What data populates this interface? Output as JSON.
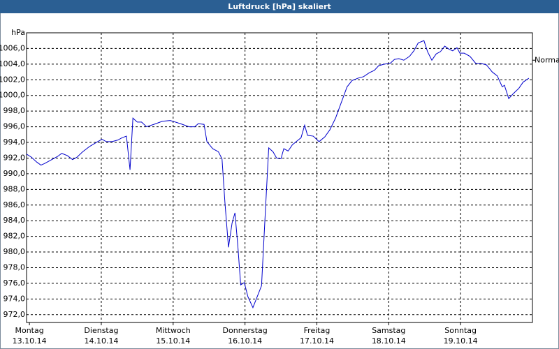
{
  "chart_data": {
    "type": "line",
    "title": "Luftdruck [hPa] skaliert",
    "y_label": "hPa",
    "annotation": {
      "label": "Normal",
      "value": 1004.5
    },
    "grid": true,
    "xlim": [
      -0.04,
      7.0
    ],
    "ylim": [
      971,
      1008
    ],
    "xticks": [
      {
        "value": 0,
        "label": [
          "Montag",
          "13.10.14"
        ]
      },
      {
        "value": 1,
        "label": [
          "Dienstag",
          "14.10.14"
        ]
      },
      {
        "value": 2,
        "label": [
          "Mittwoch",
          "15.10.14"
        ]
      },
      {
        "value": 3,
        "label": [
          "Donnerstag",
          "16.10.14"
        ]
      },
      {
        "value": 4,
        "label": [
          "Freitag",
          "17.10.14"
        ]
      },
      {
        "value": 5,
        "label": [
          "Samstag",
          "18.10.14"
        ]
      },
      {
        "value": 6,
        "label": [
          "Sonntag",
          "19.10.14"
        ]
      }
    ],
    "yticks": [
      {
        "value": 972,
        "label": "972,0"
      },
      {
        "value": 974,
        "label": "974,0"
      },
      {
        "value": 976,
        "label": "976,0"
      },
      {
        "value": 978,
        "label": "978,0"
      },
      {
        "value": 980,
        "label": "980,0"
      },
      {
        "value": 982,
        "label": "982,0"
      },
      {
        "value": 984,
        "label": "984,0"
      },
      {
        "value": 986,
        "label": "986,0"
      },
      {
        "value": 988,
        "label": "988,0"
      },
      {
        "value": 990,
        "label": "990,0"
      },
      {
        "value": 992,
        "label": "992,0"
      },
      {
        "value": 994,
        "label": "994,0"
      },
      {
        "value": 996,
        "label": "996,0"
      },
      {
        "value": 998,
        "label": "998,0"
      },
      {
        "value": 1000,
        "label": "1000,0"
      },
      {
        "value": 1002,
        "label": "1002,0"
      },
      {
        "value": 1004,
        "label": "1004,0"
      },
      {
        "value": 1006,
        "label": "1006,0"
      }
    ],
    "series": [
      {
        "color": "#0000cc",
        "x": [
          -0.04,
          0.03,
          0.1,
          0.16,
          0.21,
          0.27,
          0.33,
          0.39,
          0.45,
          0.53,
          0.6,
          0.66,
          0.74,
          0.84,
          0.95,
          1.01,
          1.07,
          1.15,
          1.23,
          1.29,
          1.35,
          1.4,
          1.44,
          1.5,
          1.56,
          1.63,
          1.73,
          1.85,
          1.96,
          2.1,
          2.22,
          2.3,
          2.35,
          2.43,
          2.47,
          2.55,
          2.63,
          2.68,
          2.72,
          2.77,
          2.82,
          2.86,
          2.9,
          2.94,
          2.99,
          3.04,
          3.11,
          3.23,
          3.28,
          3.33,
          3.39,
          3.44,
          3.5,
          3.54,
          3.6,
          3.66,
          3.74,
          3.78,
          3.83,
          3.87,
          3.95,
          4.03,
          4.11,
          4.18,
          4.26,
          4.34,
          4.42,
          4.49,
          4.57,
          4.65,
          4.73,
          4.8,
          4.86,
          4.94,
          5.02,
          5.08,
          5.14,
          5.21,
          5.29,
          5.35,
          5.41,
          5.49,
          5.54,
          5.6,
          5.66,
          5.72,
          5.78,
          5.84,
          5.89,
          5.95,
          5.99,
          6.05,
          6.13,
          6.21,
          6.28,
          6.36,
          6.44,
          6.51,
          6.58,
          6.61,
          6.67,
          6.73,
          6.81,
          6.87,
          6.95
        ],
        "values": [
          992.5,
          992.1,
          991.5,
          991.1,
          991.3,
          991.6,
          991.9,
          992.2,
          992.6,
          992.3,
          991.8,
          992.1,
          992.8,
          993.5,
          994.1,
          994.4,
          994.1,
          994.1,
          994.3,
          994.6,
          994.8,
          990.5,
          997.1,
          996.6,
          996.6,
          996.0,
          996.3,
          996.7,
          996.8,
          996.4,
          996.0,
          996.0,
          996.4,
          996.3,
          994.1,
          993.2,
          992.8,
          991.9,
          986.4,
          980.6,
          983.7,
          985.0,
          980.8,
          975.8,
          976.1,
          974.3,
          972.9,
          975.7,
          984.6,
          993.3,
          992.8,
          992.0,
          991.9,
          993.2,
          992.9,
          993.7,
          994.3,
          994.6,
          996.2,
          994.9,
          994.8,
          994.1,
          994.7,
          995.6,
          997.1,
          999.1,
          1001.1,
          1001.9,
          1002.2,
          1002.4,
          1002.9,
          1003.2,
          1003.8,
          1004.0,
          1004.1,
          1004.6,
          1004.7,
          1004.5,
          1005.0,
          1005.7,
          1006.7,
          1007.0,
          1005.6,
          1004.5,
          1005.3,
          1005.6,
          1006.3,
          1005.9,
          1005.7,
          1006.1,
          1005.4,
          1005.4,
          1005.0,
          1004.1,
          1004.1,
          1003.9,
          1003.0,
          1002.5,
          1001.1,
          1001.3,
          999.6,
          1000.2,
          1000.9,
          1001.7,
          1002.2
        ]
      }
    ]
  }
}
